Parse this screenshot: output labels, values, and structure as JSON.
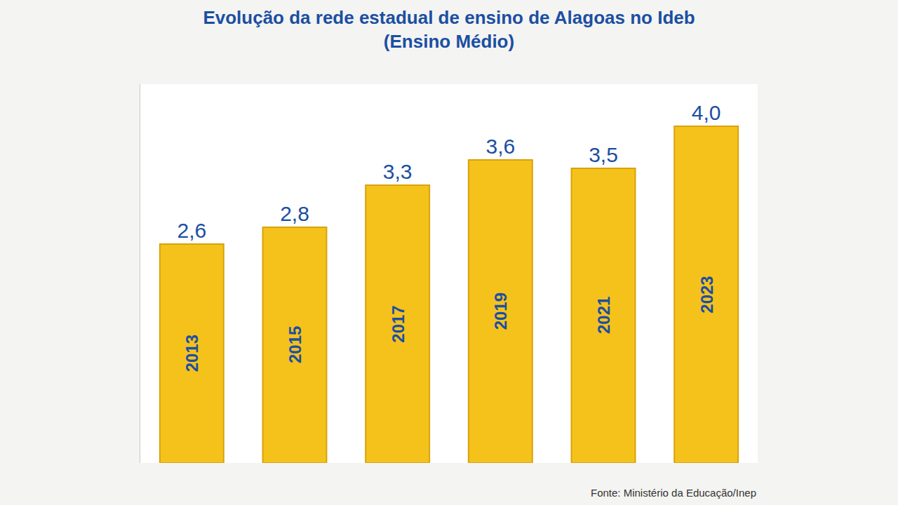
{
  "chart_data": {
    "type": "bar",
    "title": "Evolução da rede estadual de ensino de Alagoas no Ideb",
    "subtitle": "(Ensino Médio)",
    "categories": [
      "2013",
      "2015",
      "2017",
      "2019",
      "2021",
      "2023"
    ],
    "values": [
      2.6,
      2.8,
      3.3,
      3.6,
      3.5,
      4.0
    ],
    "value_labels": [
      "2,6",
      "2,8",
      "3,3",
      "3,6",
      "3,5",
      "4,0"
    ],
    "color": "#f5c21b",
    "ylim": [
      0,
      4.5
    ],
    "grid": false,
    "data_labels": true,
    "tick_labels": false,
    "source": "Fonte: Ministério da Educação/Inep"
  }
}
